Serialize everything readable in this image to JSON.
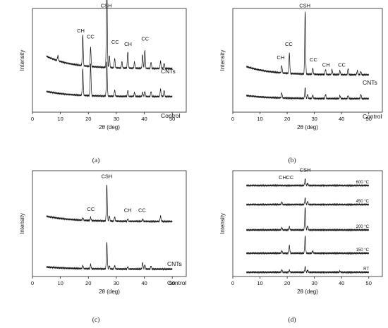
{
  "chart_data": [
    {
      "type": "line",
      "caption": "(a)",
      "xlabel": "2θ (deg)",
      "ylabel": "Intensity",
      "xlim": [
        0,
        55
      ],
      "xticks": [
        0,
        10,
        20,
        30,
        40,
        50
      ],
      "series": [
        {
          "name": "CNTs",
          "baseline": 0.42,
          "drift": 0.12,
          "peaks": [
            [
              9.1,
              0.05
            ],
            [
              18.0,
              0.3
            ],
            [
              20.8,
              0.18
            ],
            [
              26.6,
              0.92
            ],
            [
              27.5,
              0.12
            ],
            [
              29.4,
              0.09
            ],
            [
              32.0,
              0.06
            ],
            [
              34.1,
              0.16
            ],
            [
              36.5,
              0.06
            ],
            [
              39.4,
              0.13
            ],
            [
              40.2,
              0.18
            ],
            [
              42.4,
              0.06
            ],
            [
              45.8,
              0.07
            ],
            [
              47.1,
              0.05
            ]
          ]
        },
        {
          "name": "Control",
          "baseline": 0.15,
          "drift": 0.05,
          "peaks": [
            [
              18.0,
              0.26
            ],
            [
              20.8,
              0.3
            ],
            [
              26.6,
              0.33
            ],
            [
              29.4,
              0.06
            ],
            [
              34.1,
              0.06
            ],
            [
              36.5,
              0.04
            ],
            [
              39.4,
              0.04
            ],
            [
              40.2,
              0.05
            ],
            [
              42.4,
              0.05
            ],
            [
              45.8,
              0.07
            ],
            [
              47.1,
              0.06
            ]
          ]
        }
      ],
      "annotations": [
        {
          "text": "CH",
          "x": 17.3,
          "y": 0.77
        },
        {
          "text": "CC",
          "x": 20.8,
          "y": 0.71
        },
        {
          "text": "CSH",
          "x": 26.4,
          "y": 1.01
        },
        {
          "text": "CC",
          "x": 29.6,
          "y": 0.66
        },
        {
          "text": "CH",
          "x": 34.2,
          "y": 0.64
        },
        {
          "text": "CC",
          "x": 40.3,
          "y": 0.69
        }
      ]
    },
    {
      "type": "line",
      "caption": "(b)",
      "xlabel": "2θ (deg)",
      "ylabel": "Intensity",
      "xlim": [
        0,
        55
      ],
      "xticks": [
        0,
        10,
        20,
        30,
        40,
        50
      ],
      "series": [
        {
          "name": "CNTs",
          "baseline": 0.36,
          "drift": 0.08,
          "peaks": [
            [
              18.0,
              0.07
            ],
            [
              20.8,
              0.19
            ],
            [
              26.6,
              0.6
            ],
            [
              29.4,
              0.06
            ],
            [
              34.1,
              0.05
            ],
            [
              36.5,
              0.05
            ],
            [
              39.4,
              0.04
            ],
            [
              42.4,
              0.06
            ],
            [
              45.8,
              0.04
            ],
            [
              47.1,
              0.03
            ]
          ]
        },
        {
          "name": "Control",
          "baseline": 0.13,
          "drift": 0.03,
          "peaks": [
            [
              18.0,
              0.05
            ],
            [
              26.6,
              0.1
            ],
            [
              27.5,
              0.04
            ],
            [
              29.4,
              0.03
            ],
            [
              34.1,
              0.04
            ],
            [
              39.4,
              0.03
            ],
            [
              42.4,
              0.03
            ],
            [
              47.1,
              0.04
            ]
          ]
        }
      ],
      "annotations": [
        {
          "text": "CH",
          "x": 17.6,
          "y": 0.51
        },
        {
          "text": "CC",
          "x": 20.6,
          "y": 0.64
        },
        {
          "text": "CSH",
          "x": 26.5,
          "y": 1.01
        },
        {
          "text": "CC",
          "x": 29.7,
          "y": 0.49
        },
        {
          "text": "CH",
          "x": 34.3,
          "y": 0.44
        },
        {
          "text": "CC",
          "x": 40.1,
          "y": 0.44
        }
      ]
    },
    {
      "type": "line",
      "caption": "(c)",
      "xlabel": "2θ (deg)",
      "ylabel": "Intensity",
      "xlim": [
        0,
        55
      ],
      "xticks": [
        0,
        10,
        20,
        30,
        40,
        50
      ],
      "series": [
        {
          "name": "CNTs",
          "baseline": 0.52,
          "drift": 0.05,
          "peaks": [
            [
              18.0,
              0.02
            ],
            [
              20.8,
              0.03
            ],
            [
              26.6,
              0.34
            ],
            [
              27.5,
              0.05
            ],
            [
              29.4,
              0.04
            ],
            [
              34.1,
              0.02
            ],
            [
              39.4,
              0.02
            ],
            [
              45.8,
              0.05
            ]
          ]
        },
        {
          "name": "Control",
          "baseline": 0.07,
          "drift": 0.02,
          "peaks": [
            [
              18.0,
              0.03
            ],
            [
              20.8,
              0.04
            ],
            [
              26.6,
              0.25
            ],
            [
              27.5,
              0.03
            ],
            [
              29.4,
              0.03
            ],
            [
              34.1,
              0.02
            ],
            [
              39.4,
              0.06
            ],
            [
              40.2,
              0.04
            ],
            [
              42.4,
              0.03
            ]
          ]
        }
      ],
      "annotations": [
        {
          "text": "CC",
          "x": 20.9,
          "y": 0.62
        },
        {
          "text": "CSH",
          "x": 26.6,
          "y": 0.93
        },
        {
          "text": "CH",
          "x": 34.1,
          "y": 0.61
        },
        {
          "text": "CC",
          "x": 39.2,
          "y": 0.61
        }
      ]
    },
    {
      "type": "line",
      "caption": "(d)",
      "xlabel": "2θ (deg)",
      "ylabel": "Intensity",
      "xlim": [
        0,
        55
      ],
      "xticks": [
        0,
        10,
        20,
        30,
        40,
        50
      ],
      "series": [
        {
          "name": "600 °C",
          "baseline": 0.86,
          "drift": 0.0,
          "peaks": [
            [
              26.6,
              0.06
            ],
            [
              27.5,
              0.02
            ]
          ]
        },
        {
          "name": "450 °C",
          "baseline": 0.68,
          "drift": 0.0,
          "peaks": [
            [
              18.0,
              0.02
            ],
            [
              26.6,
              0.06
            ],
            [
              27.5,
              0.03
            ]
          ]
        },
        {
          "name": "200 °C",
          "baseline": 0.44,
          "drift": 0.0,
          "peaks": [
            [
              18.0,
              0.02
            ],
            [
              20.8,
              0.03
            ],
            [
              26.6,
              0.21
            ],
            [
              27.5,
              0.04
            ]
          ]
        },
        {
          "name": "150 °C",
          "baseline": 0.22,
          "drift": 0.0,
          "peaks": [
            [
              18.0,
              0.02
            ],
            [
              20.8,
              0.07
            ],
            [
              26.6,
              0.16
            ],
            [
              29.4,
              0.02
            ]
          ]
        },
        {
          "name": "RT",
          "baseline": 0.04,
          "drift": 0.0,
          "peaks": [
            [
              18.0,
              0.02
            ],
            [
              20.8,
              0.02
            ],
            [
              26.6,
              0.05
            ],
            [
              27.5,
              0.02
            ],
            [
              39.4,
              0.01
            ]
          ]
        }
      ],
      "annotations": [
        {
          "text": "CH",
          "x": 18.3,
          "y": 0.92
        },
        {
          "text": "CC",
          "x": 21.0,
          "y": 0.92
        },
        {
          "text": "CSH",
          "x": 26.6,
          "y": 0.99
        }
      ]
    }
  ]
}
